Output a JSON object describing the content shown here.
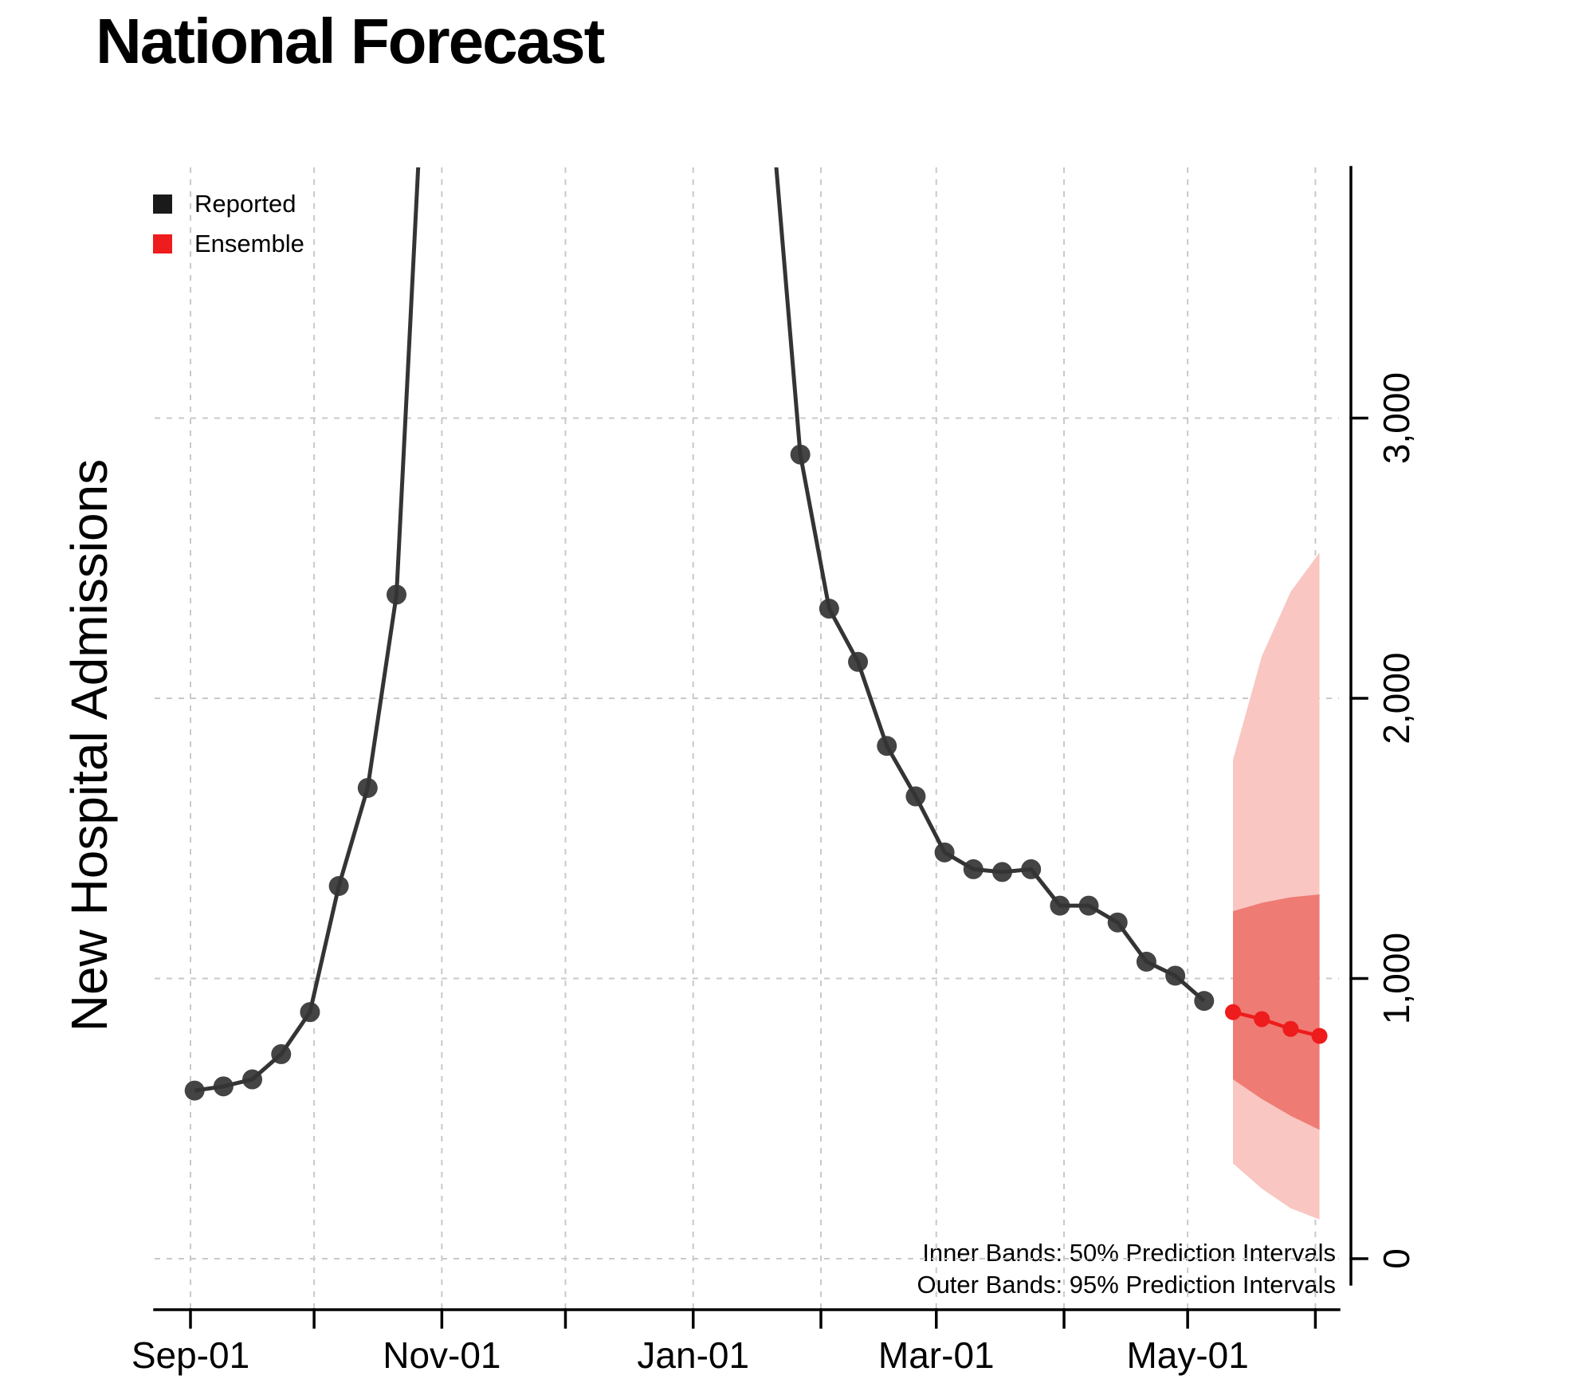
{
  "chart_data": {
    "type": "line",
    "title": "National Forecast",
    "ylabel": "New Hospital Admissions",
    "legend": [
      {
        "label": "Reported",
        "color": "#1a1a1a"
      },
      {
        "label": "Ensemble",
        "color": "#ee1c1c"
      }
    ],
    "notes": [
      "Inner Bands: 50% Prediction Intervals",
      "Outer Bands: 95% Prediction Intervals"
    ],
    "x_ticks": [
      {
        "label": "Sep-01",
        "day": 0
      },
      {
        "label": "",
        "day": 30
      },
      {
        "label": "Nov-01",
        "day": 61
      },
      {
        "label": "",
        "day": 91
      },
      {
        "label": "Jan-01",
        "day": 122
      },
      {
        "label": "",
        "day": 153
      },
      {
        "label": "Mar-01",
        "day": 181
      },
      {
        "label": "",
        "day": 212
      },
      {
        "label": "May-01",
        "day": 242
      },
      {
        "label": "",
        "day": 273
      }
    ],
    "y_ticks": [
      {
        "label": "0",
        "value": 0
      },
      {
        "label": "1,000",
        "value": 1000
      },
      {
        "label": "2,000",
        "value": 2000
      },
      {
        "label": "3,000",
        "value": 3000
      }
    ],
    "ylim": [
      0,
      3880
    ],
    "grid": true,
    "legend_position": "top-left",
    "reported": {
      "dates": [
        "Sep-02",
        "Sep-09",
        "Sep-16",
        "Sep-23",
        "Sep-30",
        "Oct-07",
        "Oct-14",
        "Oct-21",
        "Oct-28",
        "Jan-20",
        "Jan-27",
        "Feb-03",
        "Feb-10",
        "Feb-17",
        "Feb-24",
        "Mar-02",
        "Mar-09",
        "Mar-16",
        "Mar-23",
        "Mar-30",
        "Apr-06",
        "Apr-13",
        "Apr-20",
        "Apr-27",
        "May-04"
      ],
      "days": [
        1,
        8,
        15,
        22,
        29,
        36,
        43,
        50,
        57,
        141,
        148,
        155,
        162,
        169,
        176,
        183,
        190,
        197,
        204,
        211,
        218,
        225,
        232,
        239,
        246
      ],
      "values": [
        600,
        615,
        640,
        730,
        880,
        1330,
        1680,
        2370,
        4400,
        4100,
        2870,
        2320,
        2130,
        1830,
        1650,
        1450,
        1390,
        1380,
        1390,
        1260,
        1260,
        1200,
        1060,
        1010,
        920
      ],
      "note": "curve exceeds plotted axis range between Oct-28 and Jan-20 (off-chart peak)"
    },
    "forecast": {
      "dates": [
        "May-11",
        "May-18",
        "May-25",
        "Jun-01"
      ],
      "days": [
        253,
        260,
        267,
        274
      ],
      "median": [
        880,
        855,
        820,
        795
      ],
      "interval50": {
        "lower": [
          640,
          570,
          510,
          460
        ],
        "upper": [
          1240,
          1270,
          1290,
          1300
        ]
      },
      "interval95": {
        "lower": [
          340,
          250,
          180,
          140
        ],
        "upper": [
          1780,
          2150,
          2380,
          2520
        ]
      }
    },
    "colors": {
      "reported": "#343434",
      "ensemble": "#ee1c1c",
      "band50": "#ee7b74",
      "band95": "#f9c6c2",
      "grid": "#c9c9c9"
    }
  }
}
